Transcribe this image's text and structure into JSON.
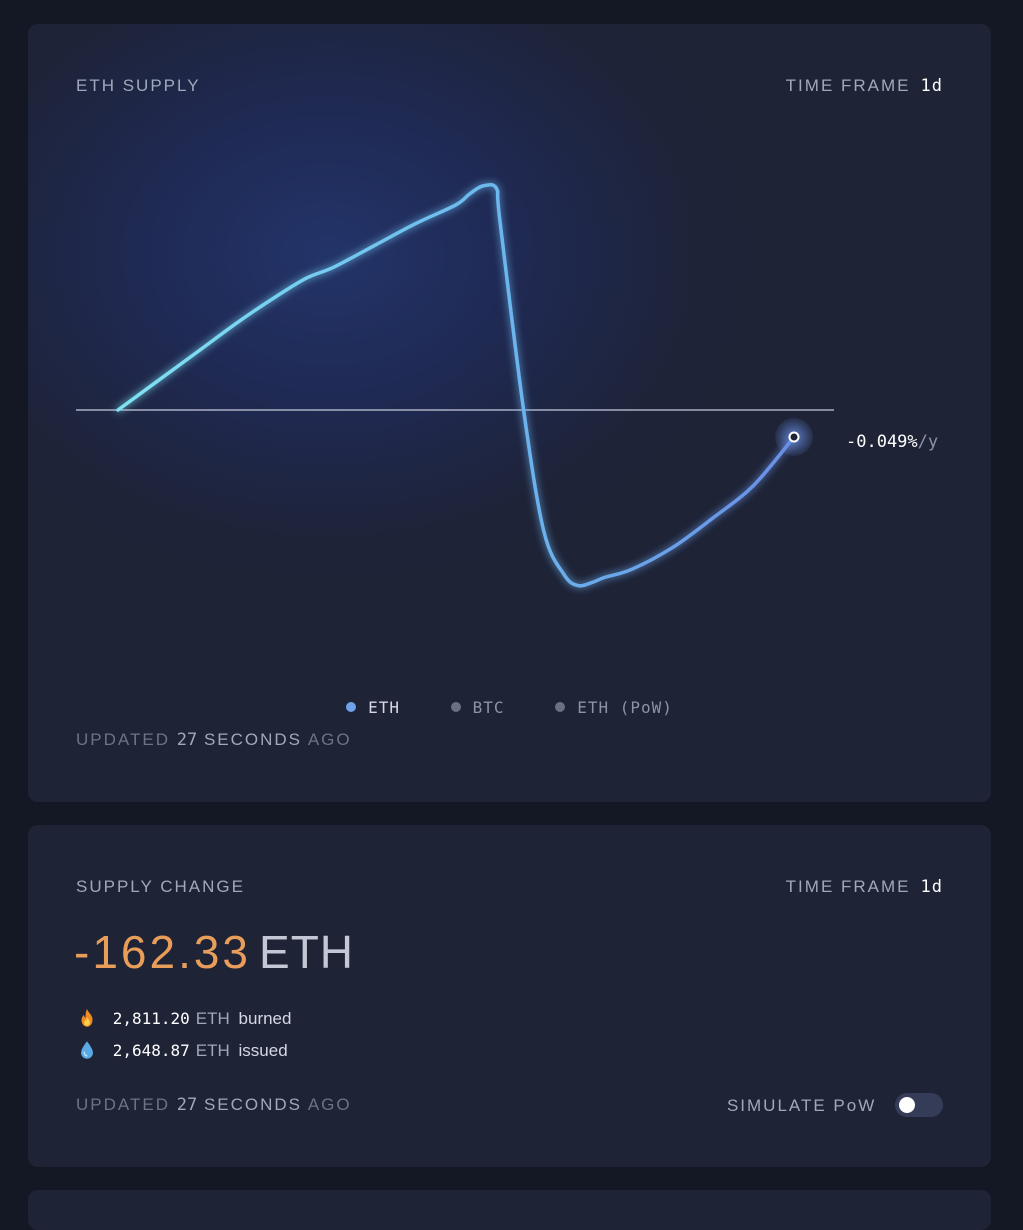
{
  "supply_card": {
    "title": "ETH SUPPLY",
    "time_frame_label": "TIME FRAME",
    "time_frame_value": "1d",
    "end_value": "-0.049%",
    "end_unit": "/y",
    "legend": [
      {
        "label": "ETH",
        "active": true
      },
      {
        "label": "BTC",
        "active": false
      },
      {
        "label": "ETH (PoW)",
        "active": false
      }
    ],
    "updated_prefix": "UPDATED",
    "updated_number": "27",
    "updated_unit": "SECONDS",
    "updated_suffix": "AGO"
  },
  "chart_data": {
    "type": "line",
    "title": "ETH SUPPLY",
    "xlabel": "",
    "ylabel": "",
    "grid": false,
    "baseline": 0,
    "series": [
      {
        "name": "ETH",
        "color": "#6fa2ea",
        "x": [
          0,
          0.06,
          0.12,
          0.18,
          0.24,
          0.28,
          0.32,
          0.38,
          0.44,
          0.5,
          0.52,
          0.54,
          0.56,
          0.565,
          0.6,
          0.63,
          0.66,
          0.68,
          0.7,
          0.72,
          0.76,
          0.82,
          0.88,
          0.94,
          1.0
        ],
        "values": [
          0,
          0.11,
          0.22,
          0.33,
          0.43,
          0.49,
          0.53,
          0.61,
          0.69,
          0.76,
          0.8,
          0.83,
          0.82,
          0.7,
          0,
          -0.45,
          -0.61,
          -0.65,
          -0.64,
          -0.62,
          -0.59,
          -0.51,
          -0.4,
          -0.28,
          -0.1
        ]
      }
    ],
    "legend": [
      "ETH",
      "BTC",
      "ETH (PoW)"
    ],
    "legend_position": "bottom-center"
  },
  "change_card": {
    "title": "SUPPLY CHANGE",
    "time_frame_label": "TIME FRAME",
    "time_frame_value": "1d",
    "value": "-162.33",
    "unit": "ETH",
    "burned_icon": "fire-icon",
    "burned_value": "2,811.20",
    "burned_unit": "ETH",
    "burned_label": "burned",
    "issued_icon": "droplet-icon",
    "issued_value": "2,648.87",
    "issued_unit": "ETH",
    "issued_label": "issued",
    "updated_prefix": "UPDATED",
    "updated_number": "27",
    "updated_unit": "SECONDS",
    "updated_suffix": "AGO",
    "simulate_label": "SIMULATE PoW",
    "simulate_on": false
  },
  "colors": {
    "accent_line": "#6fa2ea",
    "accent_cyan": "#7fe3f2",
    "negative_orange": "#e89d5a"
  }
}
